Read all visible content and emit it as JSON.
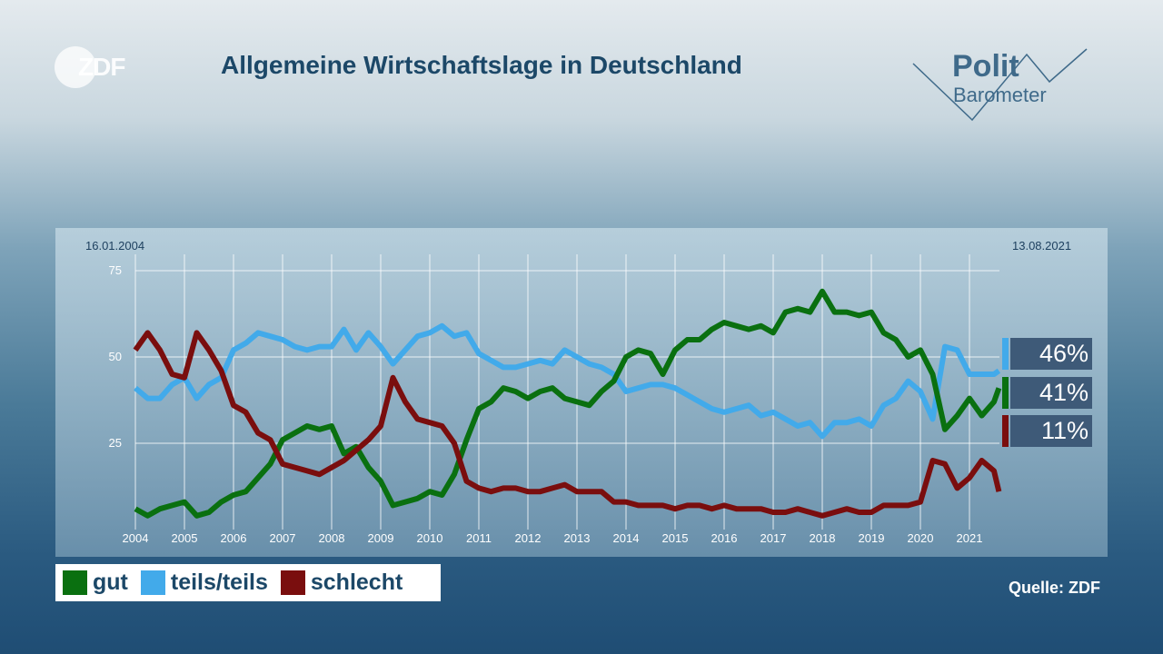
{
  "header": {
    "title": "Allgemeine Wirtschaftslage in Deutschland",
    "logo_left": "ZDF",
    "logo_right_line1": "Polit",
    "logo_right_line2": "Barometer"
  },
  "source": "Quelle: ZDF",
  "chart_data": {
    "type": "line",
    "title": "Allgemeine Wirtschaftslage in Deutschland",
    "start_date": "16.01.2004",
    "end_date": "13.08.2021",
    "xlim": [
      2004,
      2021.6
    ],
    "ylim": [
      0,
      75
    ],
    "x_ticks": [
      "2004",
      "2005",
      "2006",
      "2007",
      "2008",
      "2009",
      "2010",
      "2011",
      "2012",
      "2013",
      "2014",
      "2015",
      "2016",
      "2017",
      "2018",
      "2019",
      "2020",
      "2021"
    ],
    "y_ticks": [
      "25",
      "50",
      "75"
    ],
    "grid": true,
    "legend_placement": "bottom-left",
    "x": [
      2004.0,
      2004.25,
      2004.5,
      2004.75,
      2005.0,
      2005.25,
      2005.5,
      2005.75,
      2006.0,
      2006.25,
      2006.5,
      2006.75,
      2007.0,
      2007.25,
      2007.5,
      2007.75,
      2008.0,
      2008.25,
      2008.5,
      2008.75,
      2009.0,
      2009.25,
      2009.5,
      2009.75,
      2010.0,
      2010.25,
      2010.5,
      2010.75,
      2011.0,
      2011.25,
      2011.5,
      2011.75,
      2012.0,
      2012.25,
      2012.5,
      2012.75,
      2013.0,
      2013.25,
      2013.5,
      2013.75,
      2014.0,
      2014.25,
      2014.5,
      2014.75,
      2015.0,
      2015.25,
      2015.5,
      2015.75,
      2016.0,
      2016.25,
      2016.5,
      2016.75,
      2017.0,
      2017.25,
      2017.5,
      2017.75,
      2018.0,
      2018.25,
      2018.5,
      2018.75,
      2019.0,
      2019.25,
      2019.5,
      2019.75,
      2020.0,
      2020.25,
      2020.5,
      2020.75,
      2021.0,
      2021.25,
      2021.5,
      2021.6
    ],
    "series": [
      {
        "name": "gut",
        "color": "#0a7010",
        "final_label": "41%",
        "values": [
          6,
          4,
          6,
          7,
          8,
          4,
          5,
          8,
          10,
          11,
          15,
          19,
          26,
          28,
          30,
          29,
          30,
          22,
          24,
          18,
          14,
          7,
          8,
          9,
          11,
          10,
          16,
          26,
          35,
          37,
          41,
          40,
          38,
          40,
          41,
          38,
          37,
          36,
          40,
          43,
          50,
          52,
          51,
          45,
          52,
          55,
          55,
          58,
          60,
          59,
          58,
          59,
          57,
          63,
          64,
          63,
          69,
          63,
          63,
          62,
          63,
          57,
          55,
          50,
          52,
          45,
          29,
          33,
          38,
          33,
          37,
          41
        ]
      },
      {
        "name": "teils/teils",
        "color": "#42aaea",
        "final_label": "46%",
        "values": [
          41,
          38,
          38,
          42,
          44,
          38,
          42,
          44,
          52,
          54,
          57,
          56,
          55,
          53,
          52,
          53,
          53,
          58,
          52,
          57,
          53,
          48,
          52,
          56,
          57,
          59,
          56,
          57,
          51,
          49,
          47,
          47,
          48,
          49,
          48,
          52,
          50,
          48,
          47,
          45,
          40,
          41,
          42,
          42,
          41,
          39,
          37,
          35,
          34,
          35,
          36,
          33,
          34,
          32,
          30,
          31,
          27,
          31,
          31,
          32,
          30,
          36,
          38,
          43,
          40,
          32,
          53,
          52,
          45,
          45,
          45,
          46
        ]
      },
      {
        "name": "schlecht",
        "color": "#7a0e0e",
        "final_label": "11%",
        "values": [
          52,
          57,
          52,
          45,
          44,
          57,
          52,
          46,
          36,
          34,
          28,
          26,
          19,
          18,
          17,
          16,
          18,
          20,
          23,
          26,
          30,
          44,
          37,
          32,
          31,
          30,
          25,
          14,
          12,
          11,
          12,
          12,
          11,
          11,
          12,
          13,
          11,
          11,
          11,
          8,
          8,
          7,
          7,
          7,
          6,
          7,
          7,
          6,
          7,
          6,
          6,
          6,
          5,
          5,
          6,
          5,
          4,
          5,
          6,
          5,
          5,
          7,
          7,
          7,
          8,
          20,
          19,
          12,
          15,
          20,
          17,
          11
        ]
      }
    ]
  }
}
